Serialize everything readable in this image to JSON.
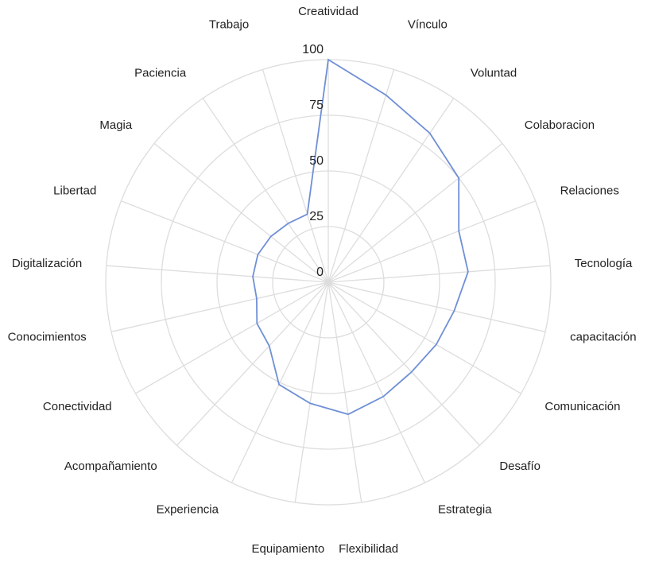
{
  "chart_data": {
    "type": "radar",
    "categories": [
      "Creatividad",
      "Vínculo",
      "Voluntad",
      "Colaboracion",
      "Relaciones",
      "Tecnología",
      "capacitación",
      "Comunicación",
      "Desafío",
      "Estrategia",
      "Flexibilidad",
      "Equipamiento",
      "Experiencia",
      "Acompañamiento",
      "Conectividad",
      "Conocimientos",
      "Digitalización",
      "Libertad",
      "Magia",
      "Paciencia",
      "Trabajo"
    ],
    "series": [
      {
        "color": "#6f8fd6",
        "values": [
          100,
          88,
          81,
          75,
          63,
          63,
          58,
          56,
          55,
          57,
          60,
          55,
          51,
          39,
          37,
          33,
          34,
          34,
          33,
          32,
          32
        ]
      }
    ],
    "ylim": [
      0,
      100
    ],
    "yticks": [
      0,
      25,
      50,
      75,
      100
    ],
    "grid": true
  }
}
